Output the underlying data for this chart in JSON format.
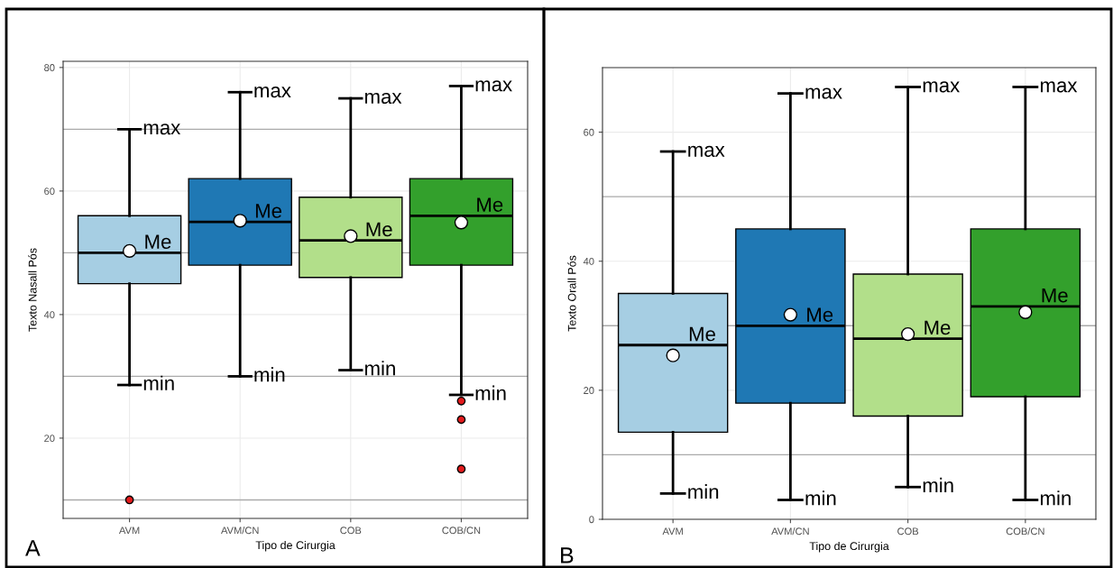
{
  "chart_data": [
    {
      "type": "box",
      "categories": [
        "AVM",
        "AVM/CN",
        "COB",
        "COB/CN"
      ],
      "xlabel": "Tipo de Cirurgia",
      "ylabel": "Texto Nasall Pós",
      "colors": [
        "#a6cee3",
        "#1f78b4",
        "#b2df8a",
        "#33a02c"
      ],
      "boxes": [
        {
          "low": 28.6,
          "q1": 45,
          "median": 50,
          "q3": 56,
          "high": 70,
          "mean": 50.3,
          "outliers": [
            10
          ]
        },
        {
          "low": 30,
          "q1": 48,
          "median": 55,
          "q3": 62,
          "high": 76,
          "mean": 55.2
        },
        {
          "low": 31,
          "q1": 46,
          "median": 52,
          "q3": 59,
          "high": 75,
          "mean": 52.7
        },
        {
          "low": 27,
          "q1": 48,
          "median": 56,
          "q3": 62,
          "high": 77,
          "mean": 54.9,
          "outliers": [
            26,
            23,
            15
          ]
        }
      ],
      "ylim": [
        7,
        81
      ],
      "yticks": [
        20,
        40,
        60,
        80
      ],
      "grid": true,
      "ref_lines": [
        {
          "axis": "y",
          "value": 10,
          "color": "#aaaaaa"
        },
        {
          "axis": "y",
          "value": 30,
          "color": "#aaaaaa"
        },
        {
          "axis": "y",
          "value": 50,
          "color": "#aaaaaa"
        },
        {
          "axis": "y",
          "value": 70,
          "color": "#aaaaaa"
        }
      ],
      "annotations": [
        "A",
        {
          "text": "max",
          "x": "AVM",
          "y": 70
        },
        {
          "text": "Me",
          "x": "AVM",
          "y": 50
        },
        {
          "text": "min",
          "x": "AVM",
          "y": 28.6
        },
        {
          "text": "max",
          "x": "AVM/CN",
          "y": 76
        },
        {
          "text": "Me",
          "x": "AVM/CN",
          "y": 55
        },
        {
          "text": "min",
          "x": "AVM/CN",
          "y": 30
        },
        {
          "text": "max",
          "x": "COB",
          "y": 75
        },
        {
          "text": "Me",
          "x": "COB",
          "y": 52
        },
        {
          "text": "min",
          "x": "COB",
          "y": 31
        },
        {
          "text": "max",
          "x": "COB/CN",
          "y": 77
        },
        {
          "text": "Me",
          "x": "COB/CN",
          "y": 56
        },
        {
          "text": "min",
          "x": "COB/CN",
          "y": 27
        }
      ]
    },
    {
      "type": "box",
      "categories": [
        "AVM",
        "AVM/CN",
        "COB",
        "COB/CN"
      ],
      "xlabel": "Tipo de Cirurgia",
      "ylabel": "Texto Orall Pós",
      "colors": [
        "#a6cee3",
        "#1f78b4",
        "#b2df8a",
        "#33a02c"
      ],
      "boxes": [
        {
          "low": 4,
          "q1": 13.5,
          "median": 27,
          "q3": 35,
          "high": 57,
          "mean": 25.4
        },
        {
          "low": 3,
          "q1": 18,
          "median": 30,
          "q3": 45,
          "high": 66,
          "mean": 31.7
        },
        {
          "low": 5,
          "q1": 16,
          "median": 28,
          "q3": 38,
          "high": 67,
          "mean": 28.7
        },
        {
          "low": 3,
          "q1": 19,
          "median": 33,
          "q3": 45,
          "high": 67,
          "mean": 32.1
        }
      ],
      "ylim": [
        0,
        70
      ],
      "yticks": [
        0,
        20,
        40,
        60
      ],
      "grid": true,
      "ref_lines": [
        {
          "axis": "y",
          "value": 10,
          "color": "#aaaaaa"
        },
        {
          "axis": "y",
          "value": 30,
          "color": "#aaaaaa"
        },
        {
          "axis": "y",
          "value": 50,
          "color": "#aaaaaa"
        }
      ],
      "annotations": [
        "B",
        {
          "text": "max",
          "x": "AVM",
          "y": 57
        },
        {
          "text": "Me",
          "x": "AVM",
          "y": 27
        },
        {
          "text": "min",
          "x": "AVM",
          "y": 4
        },
        {
          "text": "max",
          "x": "AVM/CN",
          "y": 66
        },
        {
          "text": "Me",
          "x": "AVM/CN",
          "y": 30
        },
        {
          "text": "min",
          "x": "AVM/CN",
          "y": 3
        },
        {
          "text": "max",
          "x": "COB",
          "y": 67
        },
        {
          "text": "Me",
          "x": "COB",
          "y": 28
        },
        {
          "text": "min",
          "x": "COB",
          "y": 5
        },
        {
          "text": "max",
          "x": "COB/CN",
          "y": 67
        },
        {
          "text": "Me",
          "x": "COB/CN",
          "y": 33
        },
        {
          "text": "min",
          "x": "COB/CN",
          "y": 3
        }
      ]
    }
  ]
}
